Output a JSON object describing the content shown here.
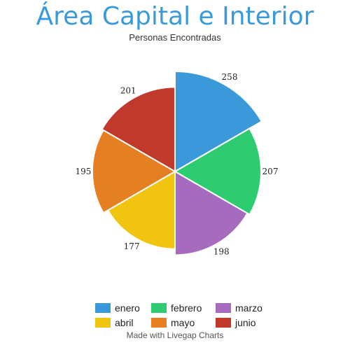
{
  "chart_data": {
    "type": "pie",
    "subtype": "polar-area",
    "title": "Área Capital e Interior",
    "subtitle": "Personas Encontradas",
    "categories": [
      "enero",
      "febrero",
      "marzo",
      "abril",
      "mayo",
      "junio"
    ],
    "values": [
      258,
      207,
      198,
      177,
      195,
      201
    ],
    "colors": [
      "#3a9ad9",
      "#2ecc71",
      "#a66bbe",
      "#f1c40f",
      "#e67e22",
      "#c0392b"
    ],
    "legend_position": "bottom",
    "grid": false
  },
  "credit": "Made with Livegap Charts"
}
